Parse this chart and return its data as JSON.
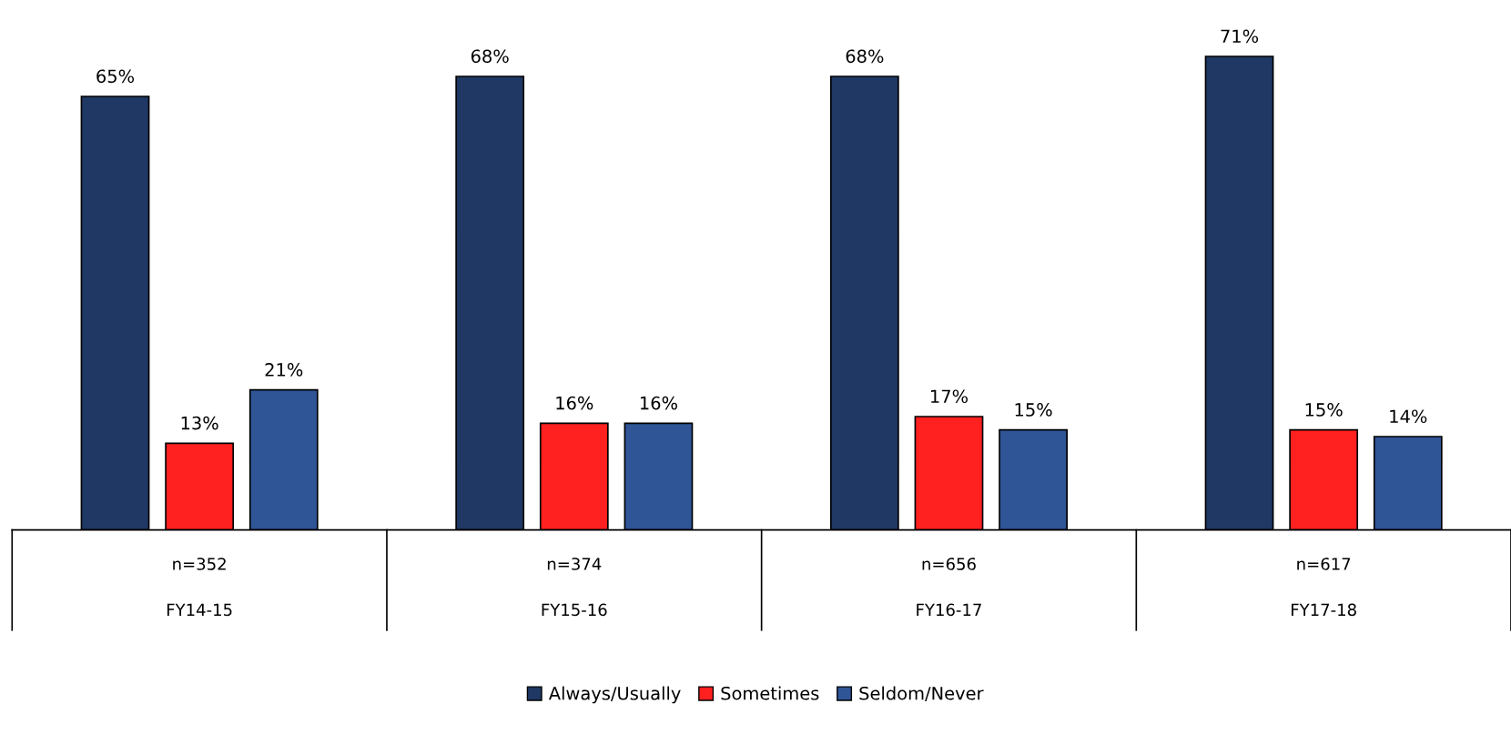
{
  "chart_data": {
    "type": "bar",
    "categories": [
      "FY14-15",
      "FY15-16",
      "FY16-17",
      "FY17-18"
    ],
    "series": [
      {
        "name": "Always/Usually",
        "color": "#1f3864",
        "values": [
          65,
          68,
          68,
          71
        ],
        "value_labels": [
          "65%",
          "68%",
          "68%",
          "71%"
        ]
      },
      {
        "name": "Sometimes",
        "color": "#ff2020",
        "values": [
          13,
          16,
          17,
          15
        ],
        "value_labels": [
          "13%",
          "16%",
          "17%",
          "15%"
        ]
      },
      {
        "name": "Seldom/Never",
        "color": "#2f5597",
        "values": [
          21,
          16,
          15,
          14
        ],
        "value_labels": [
          "21%",
          "16%",
          "15%",
          "14%"
        ]
      }
    ],
    "annotations": [
      "n=352",
      "n=374",
      "n=656",
      "n=617"
    ],
    "grid": false,
    "legend": "bottom"
  }
}
